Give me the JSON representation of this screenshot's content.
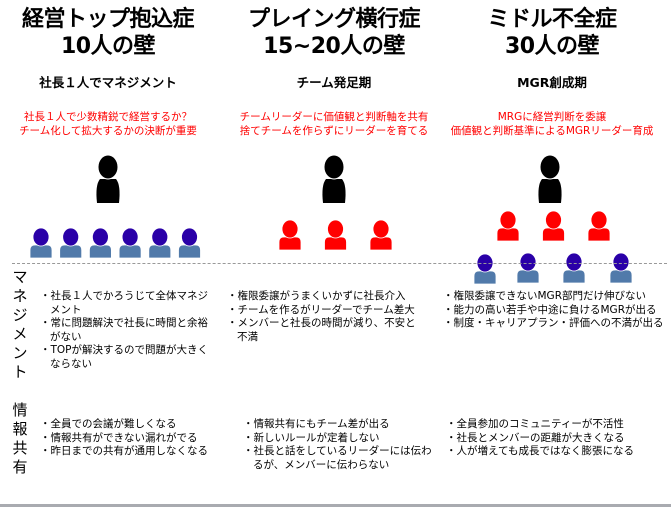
{
  "columns": [
    {
      "title1": "経営トップ抱込症",
      "title2": "10人の壁",
      "subtitle": "社長１人でマネジメント",
      "note": [
        "社長１人で少数精鋭で経営するか？",
        "チーム化して拡大するかの決断が重要"
      ],
      "management": [
        "社長１人でかろうじて全体マネジメント",
        "常に問題解決で社長に時間と余裕がない",
        "TOPが解決するので問題が大きくならない"
      ],
      "info": [
        "全員での会議が難しくなる",
        "情報共有ができない漏れがでる",
        "昨日までの共有が通用しなくなる"
      ]
    },
    {
      "title1": "プレイング横行症",
      "title2": "15~20人の壁",
      "subtitle": "チーム発足期",
      "note": [
        "チームリーダーに価値観と判断軸を共有",
        "捨てチームを作らずにリーダーを育てる"
      ],
      "management": [
        "権限委譲がうまくいかずに社長介入",
        "チームを作るがリーダーでチーム差大",
        "メンバーと社長の時間が減り、不安と不満"
      ],
      "info": [
        "情報共有にもチーム差が出る",
        "新しいルールが定着しない",
        "社長と話をしているリーダーには伝わるが、メンバーに伝わらない"
      ]
    },
    {
      "title1": "ミドル不全症",
      "title2": "30人の壁",
      "subtitle": "MGR創成期",
      "note": [
        "MRGに経営判断を委譲",
        "価値観と判断基準によるMGRリーダー育成"
      ],
      "management": [
        "権限委譲できないMGR部門だけ伸びない",
        "能力の高い若手や中途に負けるMGRが出る",
        "制度・キャリアプラン・評価への不満が出る"
      ],
      "info": [
        "全員参加のコミュニティーが不活性",
        "社長とメンバーの距離が大きくなる",
        "人が増えても成長ではなく膨張になる"
      ]
    }
  ],
  "row_labels": {
    "management": "マネジメント",
    "info": "情報共有"
  },
  "colors": {
    "leader": "#000000",
    "leader_team": "#ff0000",
    "member_head": "#2a00a8",
    "member_body": "#517aaa",
    "note": "#ff0000"
  },
  "org": [
    {
      "leaders": 1,
      "managers": 0,
      "members": 6
    },
    {
      "leaders": 1,
      "managers": 3,
      "members": 0
    },
    {
      "leaders": 1,
      "managers": 3,
      "members": 4
    }
  ]
}
